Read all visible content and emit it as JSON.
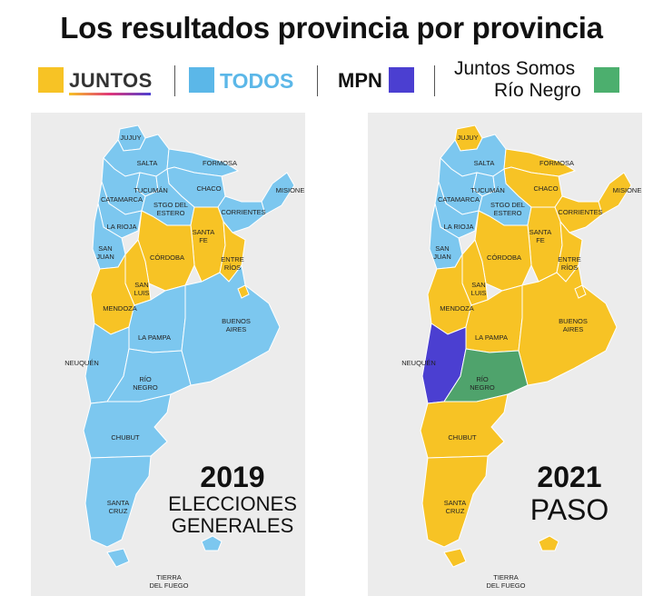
{
  "title": "Los resultados provincia por provincia",
  "legend": [
    {
      "label": "JUNTOS",
      "color": "#f7c325"
    },
    {
      "label": "TODOS",
      "color": "#5bb7e8"
    },
    {
      "label": "MPN",
      "color": "#4b3fd1"
    },
    {
      "label_line1": "Juntos Somos",
      "label_line2": "Río Negro",
      "color": "#4caf6e"
    }
  ],
  "colors": {
    "juntos": "#f7c325",
    "todos": "#7cc7ef",
    "mpn": "#4b3fd1",
    "jsrn": "#4fa36c",
    "border": "#ffffff"
  },
  "maps": [
    {
      "year": "2019",
      "line1": "ELECCIONES",
      "line2": "GENERALES",
      "winners": {
        "jujuy": "todos",
        "salta": "todos",
        "formosa": "todos",
        "chaco": "todos",
        "misiones": "todos",
        "tucuman": "todos",
        "catamarca": "todos",
        "stgo": "todos",
        "corrientes": "todos",
        "larioja": "todos",
        "sanjuan": "todos",
        "santafe": "juntos",
        "cordoba": "juntos",
        "entrerios": "juntos",
        "sanluis": "juntos",
        "mendoza": "juntos",
        "lapampa": "todos",
        "buenosaires": "todos",
        "neuquen": "todos",
        "rionegro": "todos",
        "chubut": "todos",
        "santacruz": "todos",
        "tierra": "todos",
        "caba": "juntos",
        "malvinas": "todos"
      }
    },
    {
      "year": "2021",
      "line1": "",
      "line2": "PASO",
      "winners": {
        "jujuy": "juntos",
        "salta": "todos",
        "formosa": "juntos",
        "chaco": "juntos",
        "misiones": "juntos",
        "tucuman": "todos",
        "catamarca": "todos",
        "stgo": "todos",
        "corrientes": "juntos",
        "larioja": "todos",
        "sanjuan": "todos",
        "santafe": "juntos",
        "cordoba": "juntos",
        "entrerios": "juntos",
        "sanluis": "juntos",
        "mendoza": "juntos",
        "lapampa": "juntos",
        "buenosaires": "juntos",
        "neuquen": "mpn",
        "rionegro": "jsrn",
        "chubut": "juntos",
        "santacruz": "juntos",
        "tierra": "juntos",
        "caba": "juntos",
        "malvinas": "juntos"
      }
    }
  ],
  "province_labels": {
    "jujuy": [
      "JUJUY"
    ],
    "salta": [
      "SALTA"
    ],
    "formosa": [
      "FORMOSA"
    ],
    "chaco": [
      "CHACO"
    ],
    "misiones": [
      "MISIONES"
    ],
    "tucuman": [
      "TUCUMÁN"
    ],
    "catamarca": [
      "CATAMARCA"
    ],
    "stgo": [
      "STGO DEL",
      "ESTERO"
    ],
    "corrientes": [
      "CORRIENTES"
    ],
    "larioja": [
      "LA RIOJA"
    ],
    "sanjuan": [
      "SAN",
      "JUAN"
    ],
    "santafe": [
      "SANTA",
      "FE"
    ],
    "cordoba": [
      "CÓRDOBA"
    ],
    "entrerios": [
      "ENTRE",
      "RÍOS"
    ],
    "sanluis": [
      "SAN",
      "LUIS"
    ],
    "mendoza": [
      "MENDOZA"
    ],
    "lapampa": [
      "LA PAMPA"
    ],
    "buenosaires": [
      "BUENOS",
      "AIRES"
    ],
    "neuquen": [
      "NEUQUÉN"
    ],
    "rionegro": [
      "RÍO",
      "NEGRO"
    ],
    "chubut": [
      "CHUBUT"
    ],
    "santacruz": [
      "SANTA",
      "CRUZ"
    ],
    "tierra": [
      "TIERRA",
      "DEL FUEGO"
    ]
  }
}
